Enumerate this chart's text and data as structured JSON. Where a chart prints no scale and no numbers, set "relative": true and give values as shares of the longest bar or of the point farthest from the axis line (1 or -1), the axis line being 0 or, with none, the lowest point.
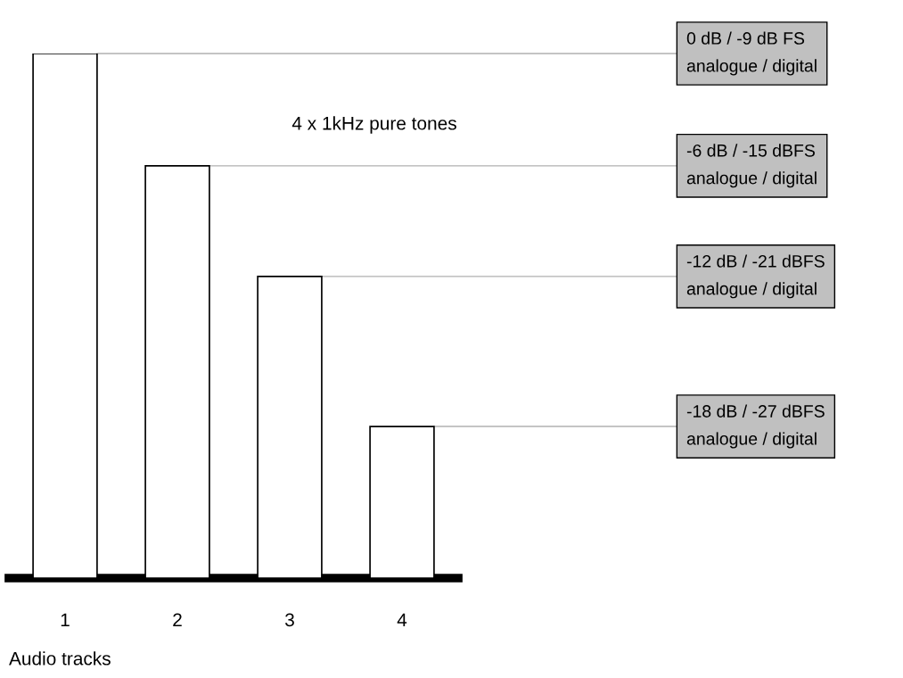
{
  "chart_data": {
    "type": "bar",
    "title": "4 x 1kHz pure tones",
    "xlabel": "Audio tracks",
    "categories": [
      "1",
      "2",
      "3",
      "4"
    ],
    "values": [
      1,
      0.786,
      0.575,
      0.289
    ],
    "color": "#ffffff",
    "relative": true,
    "grid": false,
    "legend": false,
    "ref_lines": [
      {
        "axis": "y",
        "value": 1,
        "label": "0 dB / -9 dB FS\nanalogue / digital",
        "color": "#b0b0b0"
      },
      {
        "axis": "y",
        "value": 0.786,
        "label": "-6 dB / -15 dBFS\nanalogue / digital",
        "color": "#b0b0b0"
      },
      {
        "axis": "y",
        "value": 0.575,
        "label": "-12 dB / -21 dBFS\nanalogue / digital",
        "color": "#b0b0b0"
      },
      {
        "axis": "y",
        "value": 0.289,
        "label": "-18 dB / -27 dBFS\nanalogue / digital",
        "color": "#b0b0b0"
      }
    ]
  }
}
